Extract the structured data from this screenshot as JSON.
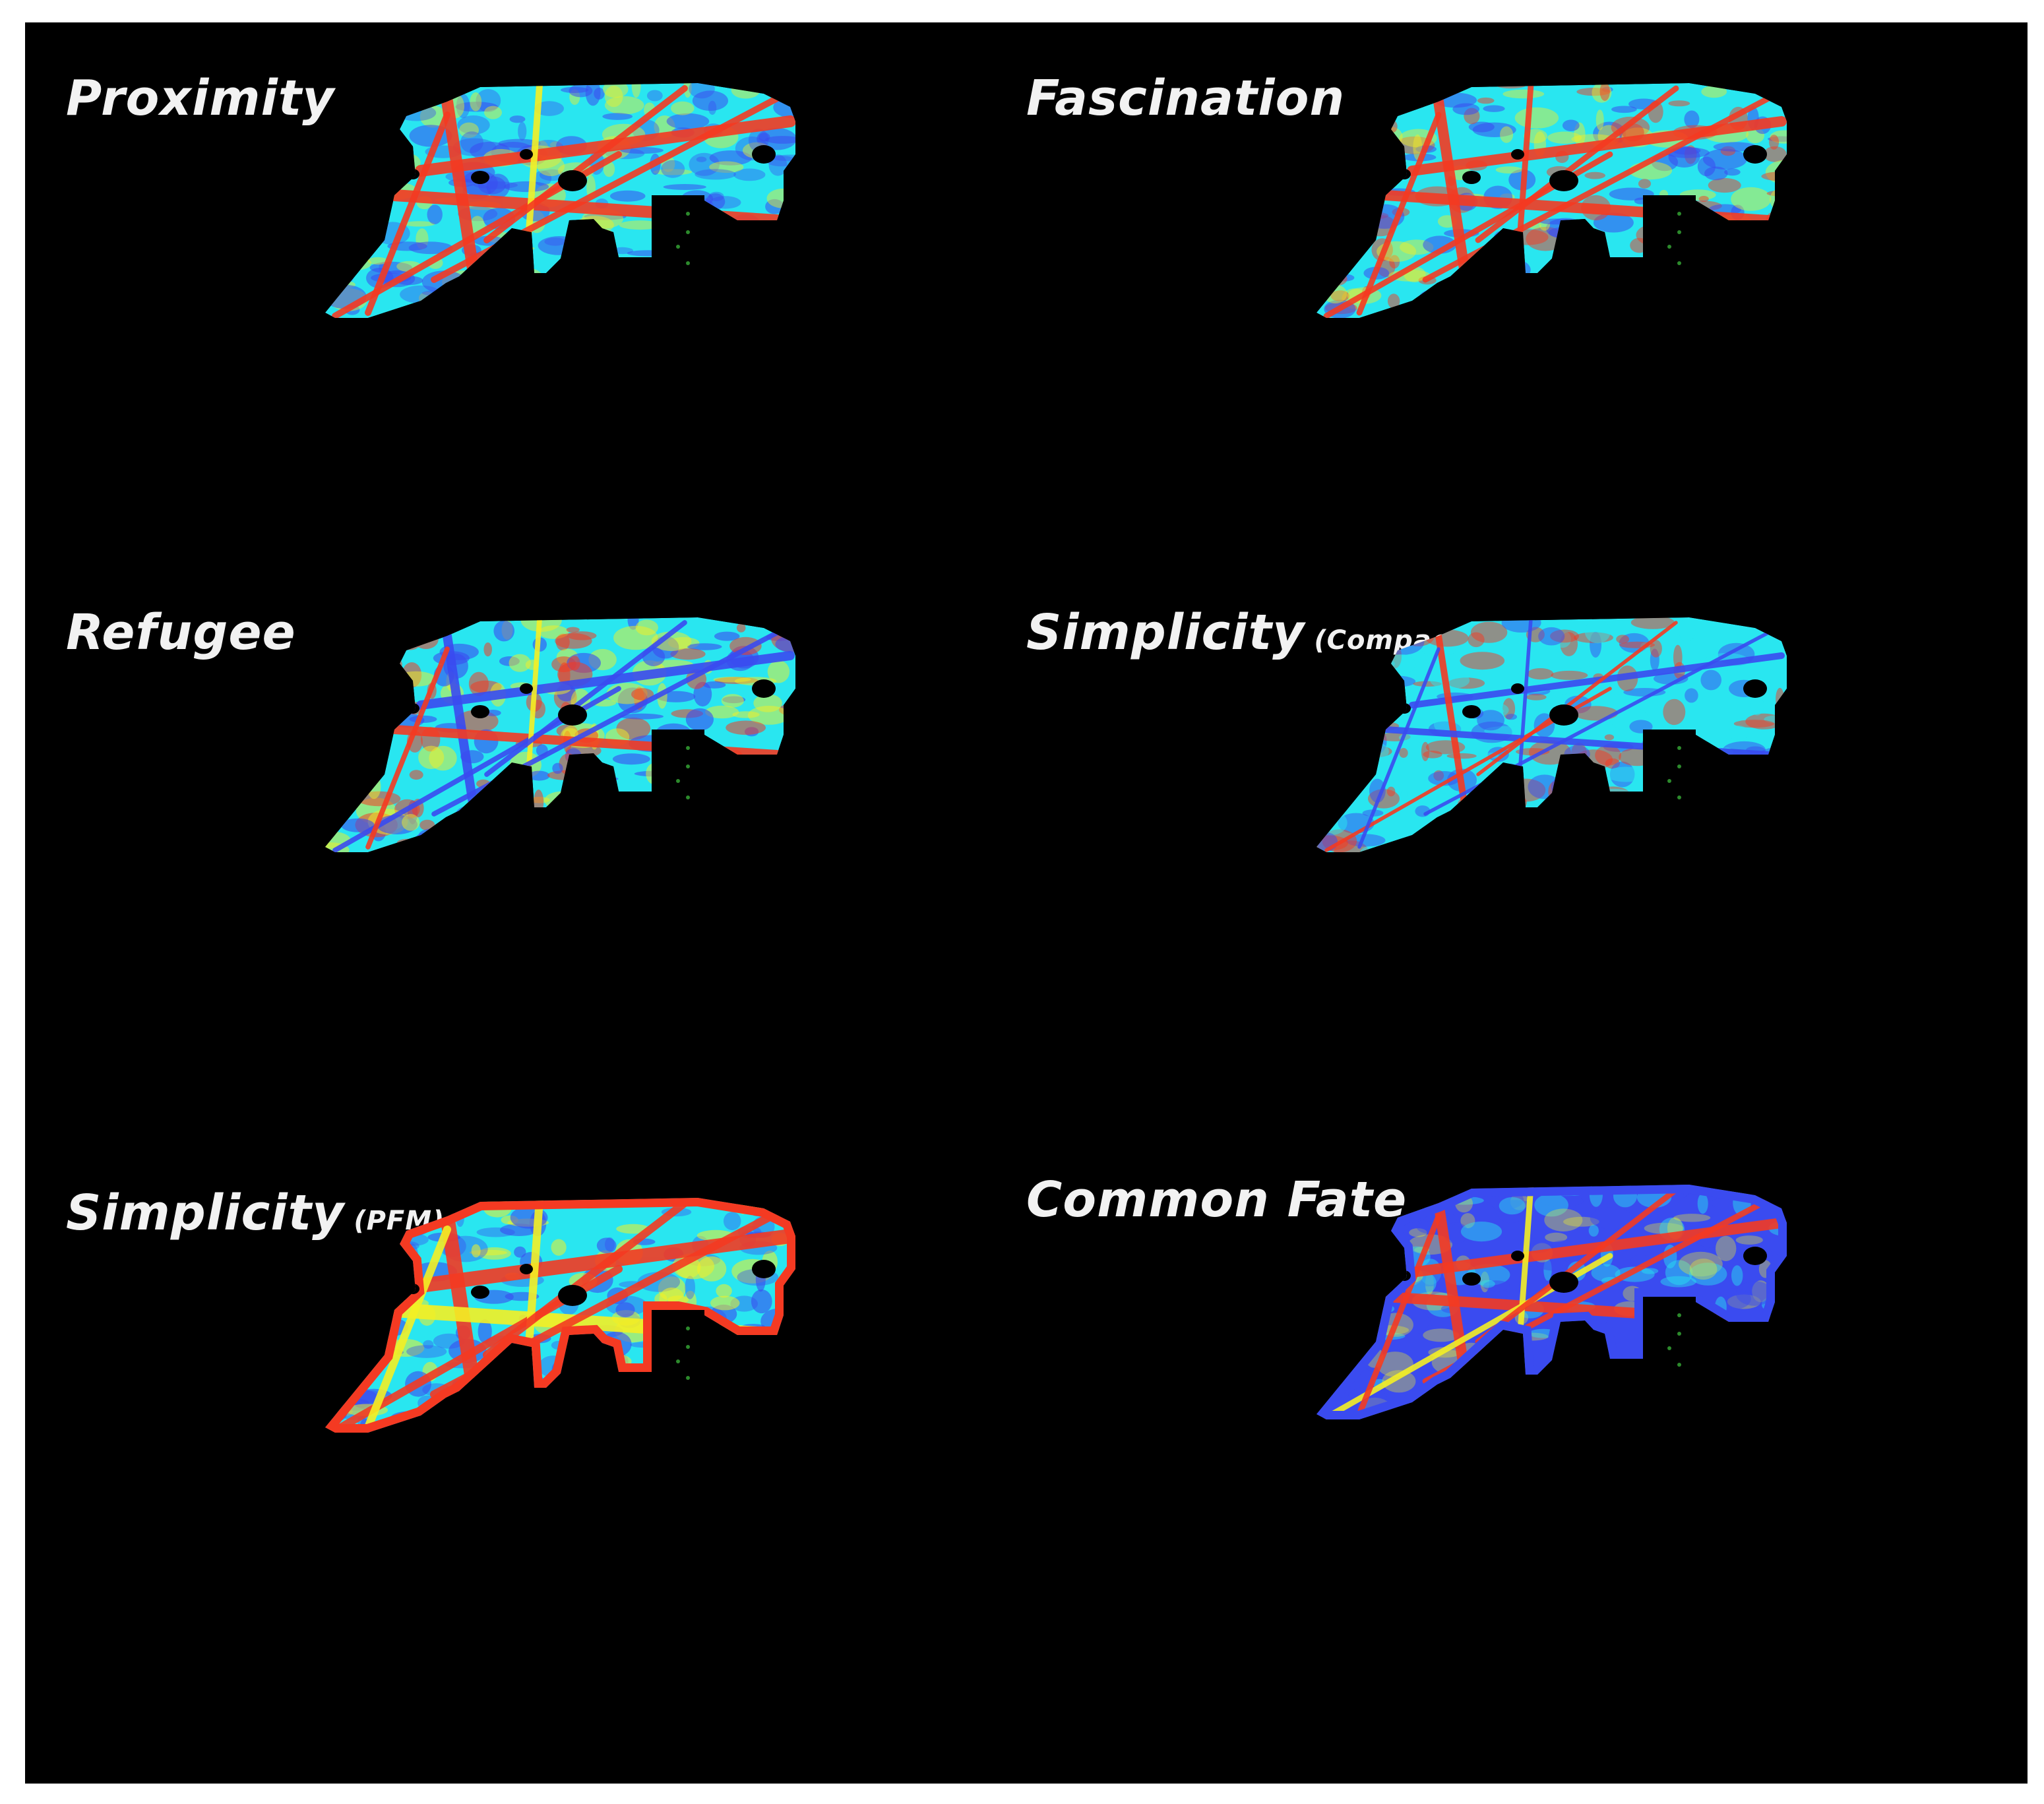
{
  "colors": {
    "background": "#000000",
    "frame": "#ffffff",
    "low": "#3a4bf0",
    "mid_low": "#29e6f0",
    "mid_high": "#f4f024",
    "high": "#f43a22",
    "label": "#f2f2f2",
    "marker": "#2c8a2c"
  },
  "panels": [
    {
      "id": "proximity",
      "title": "Proximity",
      "subtitle": "",
      "scheme": "proximity"
    },
    {
      "id": "fascination",
      "title": "Fascination",
      "subtitle": "",
      "scheme": "fascination"
    },
    {
      "id": "refugee",
      "title": "Refugee",
      "subtitle": "",
      "scheme": "refugee"
    },
    {
      "id": "compactness",
      "title": "Simplicity",
      "subtitle": "(Compactness)",
      "scheme": "compactness"
    },
    {
      "id": "pfm",
      "title": "Simplicity",
      "subtitle": "(PFM)",
      "scheme": "pfm"
    },
    {
      "id": "commonfate",
      "title": "Common Fate",
      "subtitle": "",
      "scheme": "commonfate"
    }
  ]
}
